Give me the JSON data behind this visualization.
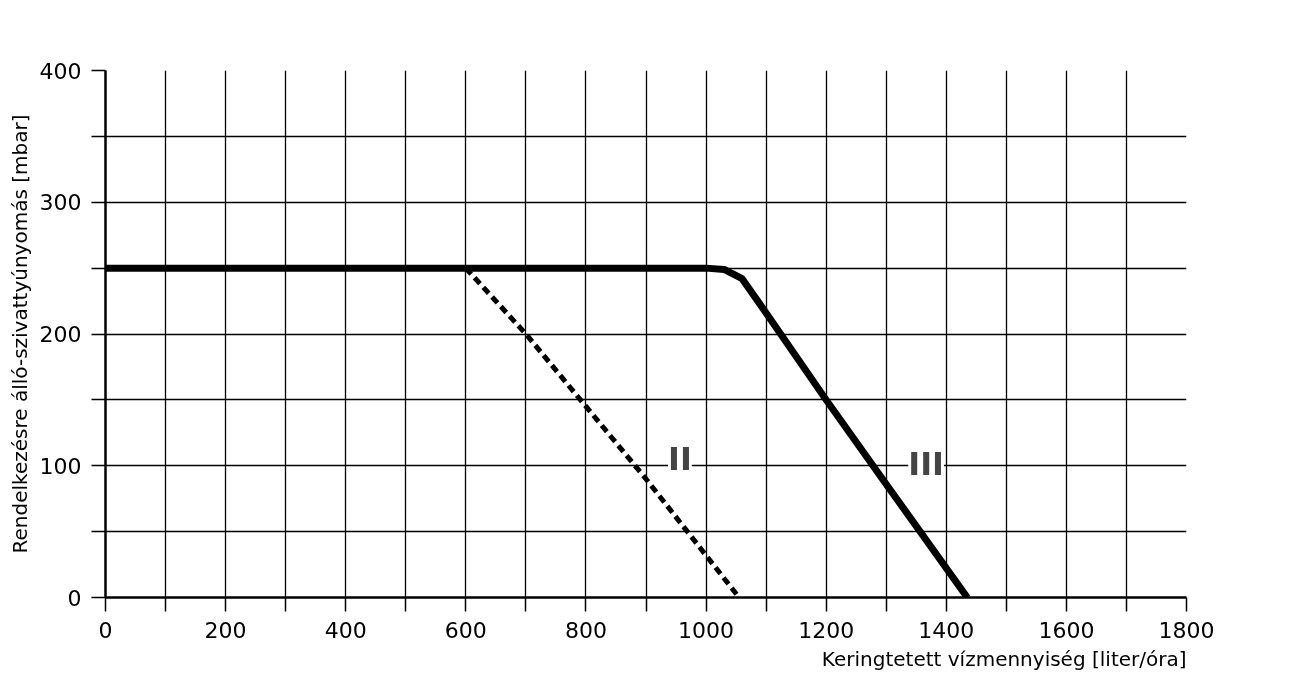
{
  "chart_data": {
    "type": "line",
    "xlabel": "Keringtetett vízmennyiség [liter/óra]",
    "ylabel": "Rendelkezésre álló-szivattyúnyomás [mbar]",
    "xlim": [
      0,
      1800
    ],
    "ylim": [
      0,
      400
    ],
    "xticks": [
      0,
      {
        "value": 100,
        "label": null
      },
      200,
      {
        "value": 300,
        "label": null
      },
      400,
      {
        "value": 500,
        "label": null
      },
      600,
      {
        "value": 700,
        "label": null
      },
      800,
      {
        "value": 900,
        "label": null
      },
      1000,
      {
        "value": 1100,
        "label": null
      },
      1200,
      {
        "value": 1300,
        "label": null
      },
      1400,
      {
        "value": 1500,
        "label": null
      },
      1600,
      {
        "value": 1700,
        "label": null
      },
      1800
    ],
    "yticks": [
      0,
      {
        "value": 50,
        "label": null
      },
      100,
      {
        "value": 150,
        "label": null
      },
      200,
      {
        "value": 250,
        "label": null
      },
      300,
      {
        "value": 350,
        "label": null
      },
      400
    ],
    "grid": true,
    "legend": false,
    "series": [
      {
        "name": "III",
        "color": "#000000",
        "line_style": "solid",
        "x": [
          0,
          1000,
          1030,
          1060,
          1100,
          1200,
          1300,
          1435
        ],
        "values": [
          250,
          250,
          249,
          242,
          216,
          150,
          86,
          0
        ]
      },
      {
        "name": "II",
        "color": "#000000",
        "line_style": "dashed",
        "x": [
          600,
          700,
          800,
          900,
          1055
        ],
        "values": [
          250,
          200,
          145,
          90,
          0
        ]
      }
    ]
  }
}
